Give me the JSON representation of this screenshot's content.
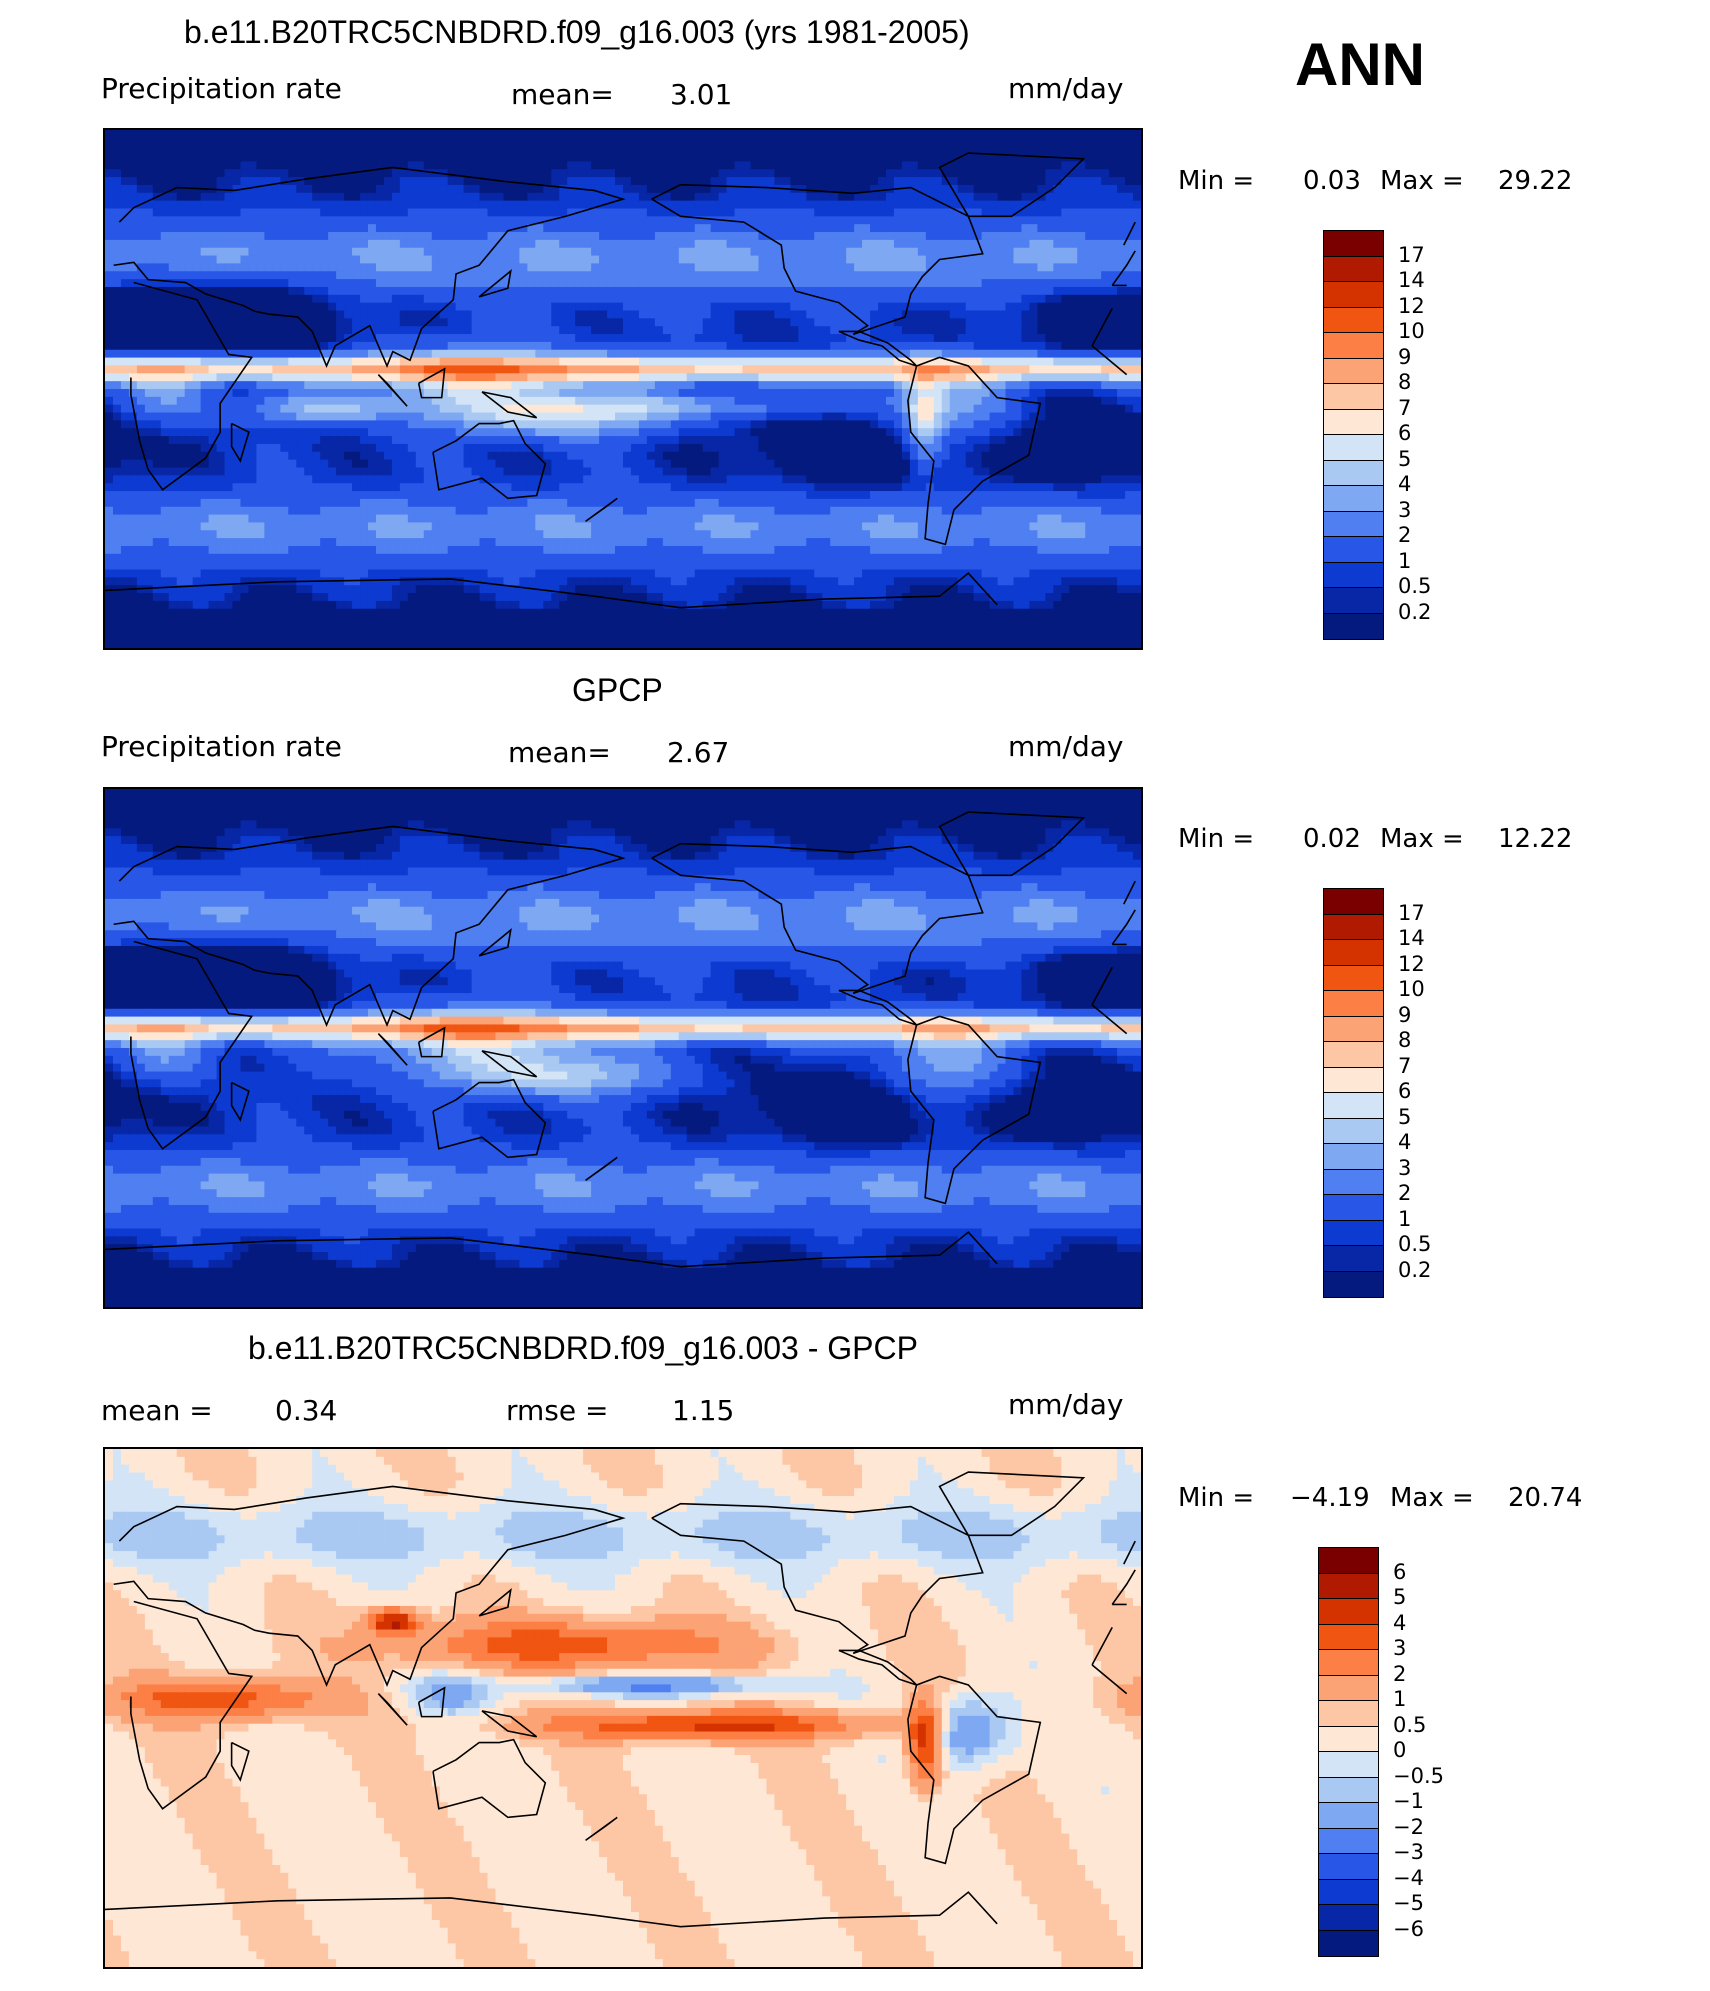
{
  "panel1": {
    "title": "b.e11.B20TRC5CNBDRD.f09_g16.003 (yrs 1981-2005)",
    "left_label": "Precipitation rate",
    "mean_text": "mean=",
    "mean_value": "3.01",
    "units": "mm/day",
    "min_label": "Min =",
    "min_value": "0.03",
    "max_label": "Max =",
    "max_value": "29.22",
    "field": "precip"
  },
  "season": "ANN",
  "panel2": {
    "title": "GPCP",
    "left_label": "Precipitation rate",
    "mean_text": "mean=",
    "mean_value": "2.67",
    "units": "mm/day",
    "min_label": "Min =",
    "min_value": "0.02",
    "max_label": "Max =",
    "max_value": "12.22",
    "field": "precip"
  },
  "panel3": {
    "title": "b.e11.B20TRC5CNBDRD.f09_g16.003 - GPCP",
    "mean_text": "mean =",
    "mean_value": "0.34",
    "rmse_text": "rmse =",
    "rmse_value": "1.15",
    "units": "mm/day",
    "min_label": "Min =",
    "min_value": "−4.19",
    "max_label": "Max =",
    "max_value": "20.74",
    "field": "diff"
  },
  "colorbars": {
    "precip": {
      "levels": [
        "17",
        "14",
        "12",
        "10",
        "9",
        "8",
        "7",
        "6",
        "5",
        "4",
        "3",
        "2",
        "1",
        "0.5",
        "0.2"
      ],
      "colors": [
        "#7a0000",
        "#b01a00",
        "#d43300",
        "#f05512",
        "#fc7f45",
        "#fca376",
        "#fdc6a5",
        "#fee8d5",
        "#d2e4f6",
        "#a9c9f3",
        "#7ea8f1",
        "#4f7ff0",
        "#2856e6",
        "#0d3ad0",
        "#0727a6",
        "#041a7e"
      ]
    },
    "diff": {
      "levels": [
        "6",
        "5",
        "4",
        "3",
        "2",
        "1",
        "0.5",
        "0",
        "−0.5",
        "−1",
        "−2",
        "−3",
        "−4",
        "−5",
        "−6"
      ],
      "colors": [
        "#7a0000",
        "#b01a00",
        "#d43300",
        "#f05512",
        "#fc7f45",
        "#fca376",
        "#fdc6a5",
        "#fee8d5",
        "#d2e4f6",
        "#a9c9f3",
        "#7ea8f1",
        "#4f7ff0",
        "#2856e6",
        "#0d3ad0",
        "#0727a6",
        "#041a7e"
      ]
    }
  }
}
